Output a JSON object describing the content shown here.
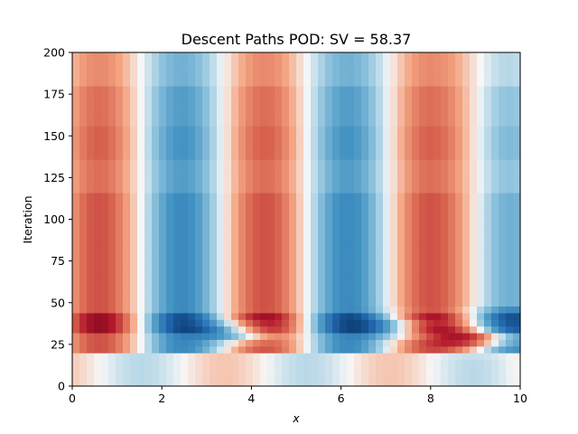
{
  "chart_data": {
    "type": "heatmap",
    "title": "Descent Paths POD: SV = 58.37",
    "xlabel": "x",
    "ylabel": "Iteration",
    "xlim": [
      0,
      10
    ],
    "ylim": [
      0,
      200
    ],
    "xticks": [
      "0",
      "2",
      "4",
      "6",
      "8",
      "10"
    ],
    "yticks": [
      "0",
      "25",
      "50",
      "75",
      "100",
      "125",
      "150",
      "175",
      "200"
    ],
    "colormap": "RdBu_r",
    "color_low": "#053061",
    "color_mid": "#f7f7f7",
    "color_high": "#67001f",
    "grid": false,
    "legend": "none",
    "spatial_wave": {
      "description": "field ~ cos(2*pi*(x - 0.6)/3.7), red near x=0,4.7,8.3 and blue near x=3.6,7.3",
      "period": 3.7,
      "phase": 0.6
    },
    "bands": [
      {
        "iter_range": [
          0,
          22
        ],
        "amplitude": 0.15,
        "shift": -0.9
      },
      {
        "iter_range": [
          22,
          32
        ],
        "amplitude": 0.55,
        "shift": 0
      },
      {
        "iter_range": [
          32,
          46
        ],
        "amplitude": 0.85,
        "shift": 0
      },
      {
        "iter_range": [
          46,
          115
        ],
        "amplitude": 0.55,
        "shift": 0
      },
      {
        "iter_range": [
          115,
          135
        ],
        "amplitude": 0.45,
        "shift": 0
      },
      {
        "iter_range": [
          135,
          157
        ],
        "amplitude": 0.5,
        "shift": 0
      },
      {
        "iter_range": [
          157,
          179
        ],
        "amplitude": 0.45,
        "shift": 0
      },
      {
        "iter_range": [
          179,
          200
        ],
        "amplitude": 0.35,
        "shift": 0
      }
    ],
    "extremes": [
      {
        "x": 9.0,
        "iteration": 29,
        "value": 0.95,
        "sign": "max"
      },
      {
        "x": 3.7,
        "iteration": 33,
        "value": -0.95,
        "sign": "min"
      },
      {
        "x": 7.3,
        "iteration": 36,
        "value": -0.9,
        "sign": "min"
      }
    ]
  }
}
